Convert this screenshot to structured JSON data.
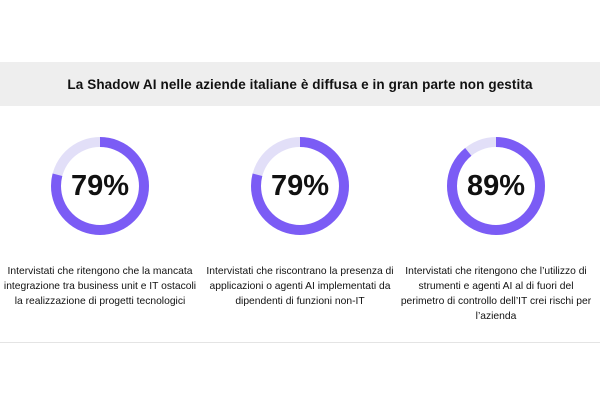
{
  "title": "La Shadow AI nelle aziende italiane è diffusa e in gran parte non gestita",
  "colors": {
    "accent": "#7b5cf5",
    "track": "#e2dff8",
    "band": "#eeeeee"
  },
  "chart_data": {
    "type": "pie",
    "title": "La Shadow AI nelle aziende italiane è diffusa e in gran parte non gestita",
    "unit": "%",
    "items": [
      {
        "value": 79,
        "label": "79%",
        "description": "Intervistati che ritengono che la mancata integrazione tra business unit e IT ostacoli la realizzazione di progetti tecnologici"
      },
      {
        "value": 79,
        "label": "79%",
        "description": "Intervistati che riscontrano la presenza di applicazioni o agenti AI implementati da dipendenti di funzioni non-IT"
      },
      {
        "value": 89,
        "label": "89%",
        "description": "Intervistati che ritengono che l’utilizzo di strumenti e agenti AI al di fuori del perimetro di controllo dell’IT crei rischi per l’azienda"
      }
    ]
  }
}
